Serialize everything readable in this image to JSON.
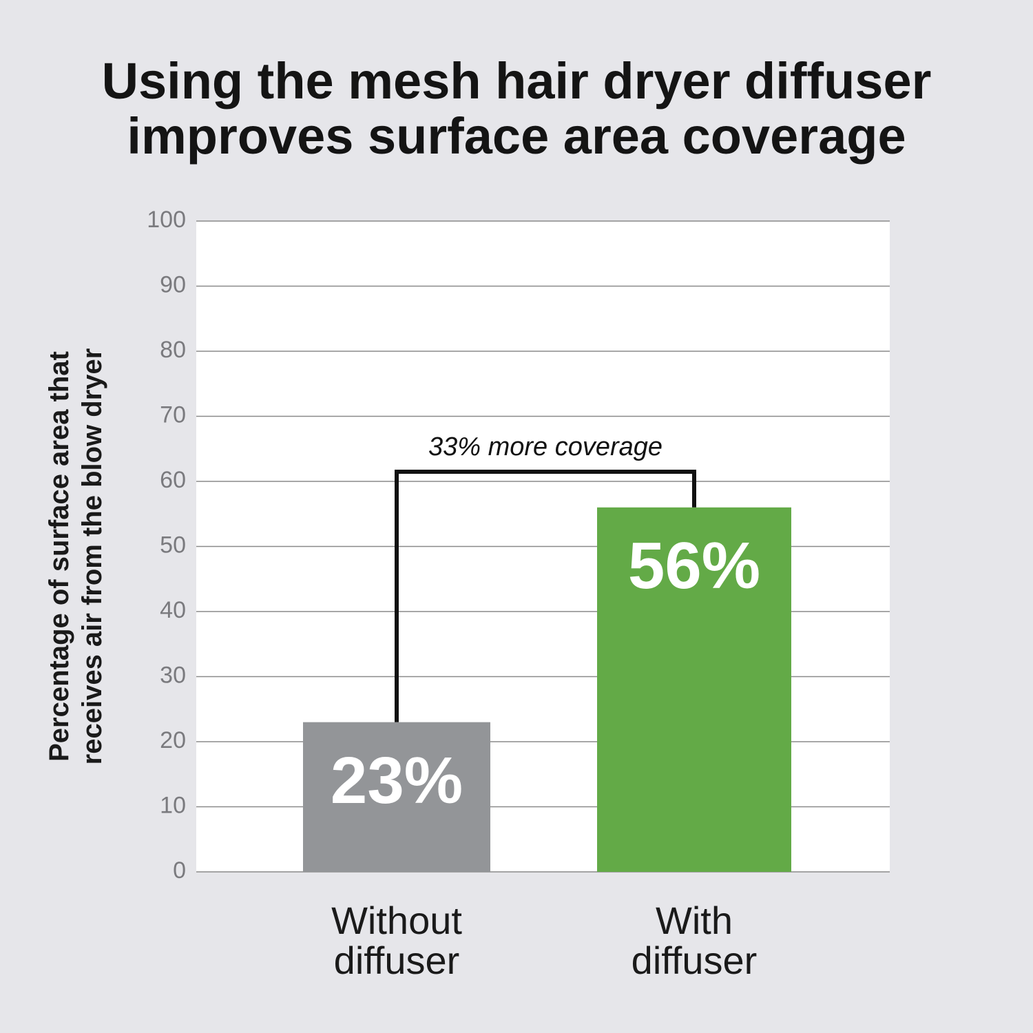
{
  "chart_data": {
    "type": "bar",
    "title": "Using the mesh hair dryer diffuser\nimproves surface area coverage",
    "y_label": "Percentage of surface area that\nreceives air from the blow dryer",
    "annotation": "33% more coverage",
    "categories": [
      "Without\ndiffuser",
      "With\ndiffuser"
    ],
    "values": [
      23,
      56
    ],
    "value_labels": [
      "23%",
      "56%"
    ],
    "colors": [
      "#939598",
      "#63aa47"
    ],
    "ylim": [
      0,
      100
    ],
    "yticks": [
      0,
      10,
      20,
      30,
      40,
      50,
      60,
      70,
      80,
      90,
      100
    ],
    "grid": true
  }
}
